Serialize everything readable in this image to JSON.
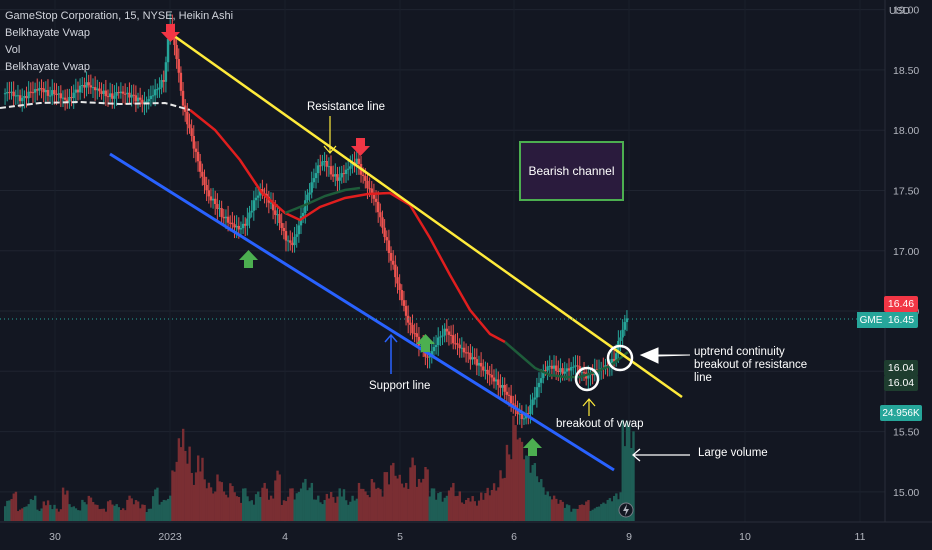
{
  "legend": {
    "line1": "GameStop Corporation, 15, NYSE, Heikin Ashi",
    "line2": "Belkhayate Vwap",
    "line3": "Vol",
    "line4": "Belkhayate Vwap"
  },
  "colors": {
    "background": "#131722",
    "up_candle": "#26a69a",
    "down_candle": "#ef5350",
    "vwap_down": "#e01e1e",
    "vwap_up": "#1e5c3a",
    "resistance": "#ffeb3b",
    "support": "#2962ff",
    "green_arrow": "#4caf50",
    "red_arrow": "#f23645",
    "axis_text": "#b2b5be"
  },
  "axis": {
    "currency": "USD"
  },
  "annotations": {
    "resistance_line": "Resistance line",
    "support_line": "Support line",
    "bearish_channel": "Bearish channel",
    "uptrend_1": "uptrend continuity",
    "uptrend_2": "breakout of resistance",
    "uptrend_3": "line",
    "breakout_vwap": "breakout of vwap",
    "large_volume": "Large volume"
  },
  "price_tags": {
    "high": "16.46",
    "symbol": "GME",
    "last": "16.45",
    "vwap1": "16.04",
    "vwap2": "16.04",
    "volume": "24.956K"
  },
  "chart_data": {
    "type": "candlestick",
    "symbol": "GME",
    "interval": "15",
    "y_ticks": [
      15.0,
      15.5,
      16.0,
      16.5,
      17.0,
      17.5,
      18.0,
      18.5,
      19.0
    ],
    "y_tick_labels": [
      "15.00",
      "15.50",
      "",
      "16.50",
      "17.00",
      "17.50",
      "18.00",
      "18.50",
      "19.00"
    ],
    "ylim": [
      14.75,
      19.08
    ],
    "x_ticks": [
      "30",
      "2023",
      "4",
      "5",
      "6",
      "9",
      "10",
      "11"
    ],
    "xlim_label": "Dec 30 – Jan 11",
    "current_price": 16.45,
    "price_path": [
      18.3,
      18.32,
      18.28,
      18.25,
      18.3,
      18.33,
      18.35,
      18.3,
      18.32,
      18.28,
      18.24,
      18.3,
      18.35,
      18.38,
      18.35,
      18.33,
      18.3,
      18.28,
      18.32,
      18.3,
      18.28,
      18.25,
      18.22,
      18.28,
      18.35,
      18.42,
      18.9,
      18.6,
      18.2,
      18.0,
      17.8,
      17.6,
      17.45,
      17.4,
      17.3,
      17.25,
      17.2,
      17.18,
      17.25,
      17.4,
      17.5,
      17.45,
      17.35,
      17.25,
      17.1,
      17.05,
      17.2,
      17.4,
      17.55,
      17.7,
      17.75,
      17.65,
      17.6,
      17.65,
      17.7,
      17.75,
      17.6,
      17.5,
      17.4,
      17.2,
      17.0,
      16.8,
      16.6,
      16.4,
      16.3,
      16.2,
      16.1,
      16.2,
      16.3,
      16.35,
      16.25,
      16.2,
      16.15,
      16.1,
      16.05,
      16.0,
      15.95,
      15.9,
      15.85,
      15.75,
      15.65,
      15.6,
      15.7,
      15.85,
      16.0,
      16.05,
      16.02,
      16.0,
      16.02,
      16.05,
      15.98,
      15.95,
      16.0,
      16.02,
      16.05,
      16.1,
      16.3,
      16.45
    ],
    "volume_path": [
      5,
      7,
      3,
      4,
      6,
      3,
      5,
      4,
      3,
      8,
      4,
      3,
      5,
      6,
      4,
      3,
      5,
      4,
      3,
      6,
      5,
      4,
      3,
      8,
      5,
      6,
      14,
      22,
      18,
      12,
      16,
      10,
      8,
      11,
      7,
      9,
      6,
      8,
      5,
      7,
      9,
      6,
      12,
      5,
      8,
      7,
      10,
      9,
      6,
      5,
      7,
      6,
      8,
      5,
      6,
      9,
      7,
      10,
      8,
      12,
      14,
      11,
      9,
      15,
      10,
      13,
      8,
      7,
      6,
      9,
      7,
      5,
      6,
      5,
      7,
      8,
      9,
      12,
      18,
      25,
      20,
      16,
      14,
      10,
      7,
      6,
      5,
      4,
      3,
      4,
      5,
      3,
      4,
      5,
      6,
      7,
      25,
      23
    ],
    "volume_last": "24.956K",
    "resistance_line": {
      "from": [
        "Jan 3",
        18.9
      ],
      "to": [
        "Jan 9",
        15.88
      ]
    },
    "support_line": {
      "from": [
        "Dec 30",
        18.0
      ],
      "to": [
        "Jan 9",
        15.15
      ]
    }
  }
}
